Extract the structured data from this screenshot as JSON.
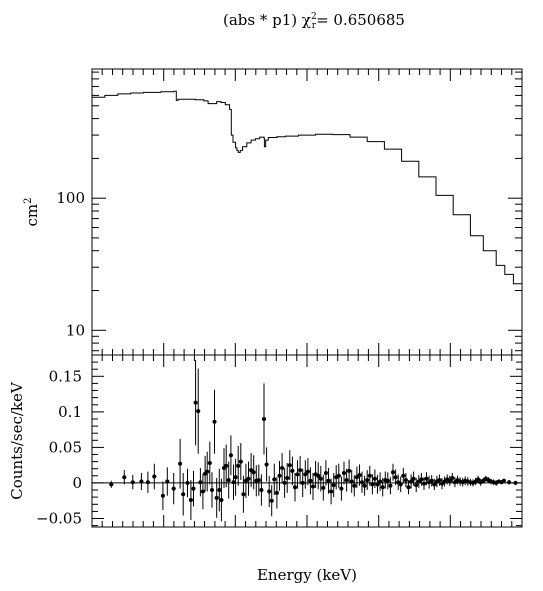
{
  "figure": {
    "title_prefix": "(abs * p1)",
    "title_chi_symbol": "χ",
    "title_chi_sup": "2",
    "title_chi_sub": "r",
    "title_value": "= 0.650685",
    "xlabel": "Energy (keV)"
  },
  "chart_data": [
    {
      "type": "line",
      "name": "effective-area",
      "ylabel": "cm",
      "ylabel_sup": "2",
      "yscale": "log",
      "ylim": [
        6.5,
        950
      ],
      "xlim": [
        0,
        1
      ],
      "yticks": [
        {
          "value": 10,
          "label": "10"
        },
        {
          "value": 100,
          "label": "100"
        }
      ],
      "x_axis_tick_labels_shown": false,
      "x": [
        0.0,
        0.03,
        0.06,
        0.09,
        0.12,
        0.16,
        0.19,
        0.196,
        0.2,
        0.24,
        0.26,
        0.27,
        0.29,
        0.3,
        0.31,
        0.32,
        0.324,
        0.328,
        0.331,
        0.334,
        0.337,
        0.34,
        0.345,
        0.35,
        0.36,
        0.37,
        0.38,
        0.39,
        0.4,
        0.401,
        0.404,
        0.41,
        0.43,
        0.45,
        0.48,
        0.52,
        0.56,
        0.6,
        0.64,
        0.68,
        0.72,
        0.76,
        0.8,
        0.84,
        0.88,
        0.91,
        0.94,
        0.96,
        0.98,
        1.0
      ],
      "y": [
        580,
        600,
        615,
        625,
        632,
        640,
        645,
        550,
        560,
        555,
        545,
        520,
        538,
        530,
        510,
        470,
        300,
        265,
        265,
        240,
        230,
        222,
        230,
        245,
        262,
        275,
        282,
        290,
        285,
        245,
        275,
        288,
        292,
        295,
        300,
        305,
        303,
        290,
        268,
        235,
        190,
        145,
        105,
        75,
        52,
        40,
        31,
        26.5,
        22.5,
        20
      ]
    },
    {
      "type": "scatter",
      "name": "residuals",
      "ylabel": "Counts/sec/keV",
      "ylim": [
        -0.062,
        0.18
      ],
      "xlim": [
        0,
        1
      ],
      "yticks": [
        {
          "value": -0.05,
          "label": "−0.05"
        },
        {
          "value": 0,
          "label": "0"
        },
        {
          "value": 0.05,
          "label": "0.05"
        },
        {
          "value": 0.1,
          "label": "0.1"
        },
        {
          "value": 0.15,
          "label": "0.15"
        }
      ],
      "zero_line": 0,
      "x": [
        0.045,
        0.075,
        0.095,
        0.115,
        0.13,
        0.145,
        0.165,
        0.175,
        0.19,
        0.205,
        0.212,
        0.222,
        0.23,
        0.236,
        0.241,
        0.247,
        0.252,
        0.258,
        0.263,
        0.268,
        0.274,
        0.279,
        0.285,
        0.29,
        0.296,
        0.301,
        0.307,
        0.312,
        0.318,
        0.323,
        0.329,
        0.334,
        0.34,
        0.346,
        0.352,
        0.358,
        0.364,
        0.37,
        0.376,
        0.382,
        0.388,
        0.394,
        0.4,
        0.406,
        0.412,
        0.418,
        0.424,
        0.43,
        0.436,
        0.442,
        0.448,
        0.454,
        0.46,
        0.466,
        0.472,
        0.478,
        0.484,
        0.49,
        0.496,
        0.502,
        0.508,
        0.514,
        0.52,
        0.526,
        0.532,
        0.538,
        0.544,
        0.55,
        0.556,
        0.562,
        0.568,
        0.574,
        0.58,
        0.586,
        0.592,
        0.598,
        0.604,
        0.61,
        0.616,
        0.622,
        0.628,
        0.634,
        0.64,
        0.646,
        0.652,
        0.658,
        0.664,
        0.67,
        0.676,
        0.682,
        0.688,
        0.694,
        0.7,
        0.706,
        0.712,
        0.718,
        0.724,
        0.73,
        0.736,
        0.742,
        0.748,
        0.754,
        0.76,
        0.766,
        0.772,
        0.778,
        0.784,
        0.79,
        0.796,
        0.802,
        0.808,
        0.814,
        0.82,
        0.826,
        0.832,
        0.838,
        0.844,
        0.85,
        0.856,
        0.862,
        0.868,
        0.874,
        0.88,
        0.886,
        0.892,
        0.898,
        0.904,
        0.91,
        0.916,
        0.922,
        0.928,
        0.934,
        0.94,
        0.946,
        0.952,
        0.958,
        0.97,
        0.985
      ],
      "y": [
        -0.002,
        0.008,
        0.001,
        0.002,
        0.001,
        0.009,
        -0.018,
        0.002,
        -0.008,
        0.027,
        -0.016,
        0.0,
        -0.024,
        -0.008,
        0.113,
        0.101,
        0.001,
        -0.012,
        0.013,
        0.016,
        0.028,
        -0.01,
        0.086,
        -0.021,
        -0.01,
        -0.024,
        0.021,
        0.024,
        0.004,
        0.039,
        0.001,
        0.008,
        0.024,
        0.03,
        -0.016,
        0.003,
        0.006,
        0.018,
        0.015,
        0.003,
        0.004,
        -0.01,
        0.09,
        0.026,
        -0.012,
        -0.025,
        0.005,
        -0.014,
        0.01,
        0.021,
        0.0,
        0.007,
        0.025,
        0.017,
        -0.006,
        0.012,
        0.018,
        0.0,
        0.012,
        0.016,
        0.003,
        -0.005,
        0.012,
        0.01,
        0.006,
        -0.007,
        0.014,
        0.003,
        -0.012,
        -0.003,
        0.008,
        0.01,
        -0.008,
        0.014,
        0.004,
        0.017,
        0.002,
        -0.004,
        0.008,
        0.011,
        0.001,
        -0.004,
        0.004,
        0.01,
        -0.002,
        0.006,
        -0.002,
        0.002,
        -0.006,
        0.004,
        0.003,
        -0.004,
        0.015,
        0.008,
        0.001,
        -0.002,
        0.01,
        0.004,
        -0.006,
        0.002,
        0.006,
        -0.003,
        0.002,
        0.005,
        -0.001,
        0.006,
        0.001,
        0.003,
        -0.002,
        0.002,
        0.004,
        -0.001,
        0.002,
        0.005,
        0.003,
        0.007,
        0.001,
        0.004,
        0.002,
        0.001,
        0.003,
        0.002,
        0.001,
        0.0,
        0.002,
        0.005,
        0.001,
        0.003,
        0.006,
        0.004,
        0.002,
        0.001,
        0.0,
        0.002,
        0.001,
        0.003,
        0.001,
        0.0
      ],
      "yerr": [
        0.005,
        0.01,
        0.01,
        0.012,
        0.015,
        0.018,
        0.02,
        0.02,
        0.022,
        0.035,
        0.03,
        0.02,
        0.028,
        0.025,
        0.06,
        0.06,
        0.02,
        0.025,
        0.025,
        0.028,
        0.03,
        0.025,
        0.045,
        0.028,
        0.03,
        0.03,
        0.028,
        0.03,
        0.026,
        0.028,
        0.025,
        0.026,
        0.028,
        0.026,
        0.026,
        0.024,
        0.024,
        0.024,
        0.024,
        0.022,
        0.022,
        0.022,
        0.05,
        0.024,
        0.022,
        0.022,
        0.022,
        0.022,
        0.021,
        0.021,
        0.021,
        0.021,
        0.021,
        0.02,
        0.02,
        0.02,
        0.02,
        0.02,
        0.02,
        0.019,
        0.019,
        0.019,
        0.019,
        0.019,
        0.018,
        0.018,
        0.018,
        0.018,
        0.018,
        0.017,
        0.017,
        0.017,
        0.017,
        0.016,
        0.016,
        0.016,
        0.016,
        0.015,
        0.015,
        0.015,
        0.015,
        0.014,
        0.014,
        0.014,
        0.014,
        0.013,
        0.013,
        0.013,
        0.013,
        0.012,
        0.012,
        0.012,
        0.012,
        0.011,
        0.011,
        0.011,
        0.011,
        0.01,
        0.01,
        0.01,
        0.01,
        0.01,
        0.009,
        0.009,
        0.009,
        0.009,
        0.009,
        0.008,
        0.008,
        0.008,
        0.008,
        0.008,
        0.007,
        0.007,
        0.007,
        0.007,
        0.007,
        0.006,
        0.006,
        0.006,
        0.006,
        0.006,
        0.005,
        0.005,
        0.005,
        0.005,
        0.005,
        0.004,
        0.004,
        0.004,
        0.004,
        0.004,
        0.004,
        0.003,
        0.003,
        0.003,
        0.003,
        0.003
      ]
    }
  ]
}
